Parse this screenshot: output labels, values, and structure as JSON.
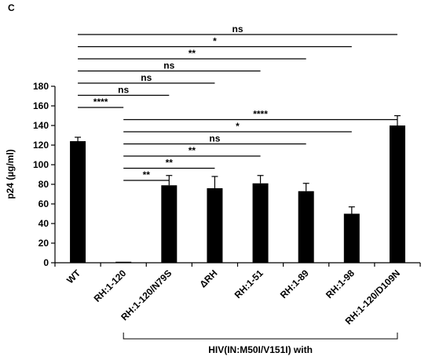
{
  "panel_label": "C",
  "chart_data": {
    "type": "bar",
    "ylabel": "p24 (µg/ml)",
    "ylim": [
      0,
      180
    ],
    "yticks": [
      0,
      20,
      40,
      60,
      80,
      100,
      120,
      140,
      160,
      180
    ],
    "categories": [
      "WT",
      "RH:1-120",
      "RH:1-120/N79S",
      "ΔRH",
      "RH:1-51",
      "RH:1-89",
      "RH:1-98",
      "RH:1-120/D109N"
    ],
    "values": [
      124,
      1,
      79,
      76,
      81,
      73,
      50,
      140
    ],
    "errors": [
      4,
      0,
      10,
      12,
      8,
      8,
      7,
      10
    ],
    "bar_color": "#000000",
    "group_label": "HIV(IN:M50I/V151I) with",
    "group_range": [
      "RH:1-120",
      "RH:1-120/D109N"
    ],
    "significance": [
      {
        "from": "WT",
        "to": "RH:1-120/D109N",
        "label": "ns"
      },
      {
        "from": "WT",
        "to": "RH:1-98",
        "label": "*"
      },
      {
        "from": "WT",
        "to": "RH:1-89",
        "label": "**"
      },
      {
        "from": "WT",
        "to": "RH:1-51",
        "label": "ns"
      },
      {
        "from": "WT",
        "to": "ΔRH",
        "label": "ns"
      },
      {
        "from": "WT",
        "to": "RH:1-120/N79S",
        "label": "ns"
      },
      {
        "from": "WT",
        "to": "RH:1-120",
        "label": "****"
      },
      {
        "from": "RH:1-120",
        "to": "RH:1-120/D109N",
        "label": "****"
      },
      {
        "from": "RH:1-120",
        "to": "RH:1-98",
        "label": "*"
      },
      {
        "from": "RH:1-120",
        "to": "RH:1-89",
        "label": "ns"
      },
      {
        "from": "RH:1-120",
        "to": "RH:1-51",
        "label": "**"
      },
      {
        "from": "RH:1-120",
        "to": "ΔRH",
        "label": "**"
      },
      {
        "from": "RH:1-120",
        "to": "RH:1-120/N79S",
        "label": "**"
      }
    ]
  }
}
